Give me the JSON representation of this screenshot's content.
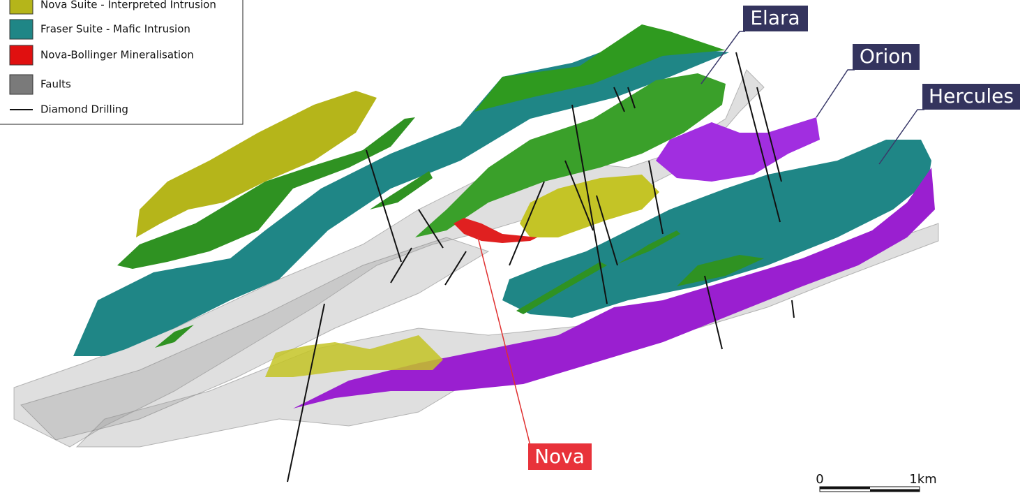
{
  "legend": {
    "items": [
      {
        "label": "Nova Suite - Interpreted Intrusion"
      },
      {
        "label": "Fraser Suite - Mafic Intrusion"
      },
      {
        "label": "Nova-Bollinger Mineralisation"
      },
      {
        "label": "Faults"
      },
      {
        "label": "Diamond Drilling"
      }
    ]
  },
  "callouts": [
    "Elara",
    "Orion",
    "Hercules",
    "Nova"
  ],
  "scale_bar": {
    "start": "0",
    "end": "1km"
  }
}
